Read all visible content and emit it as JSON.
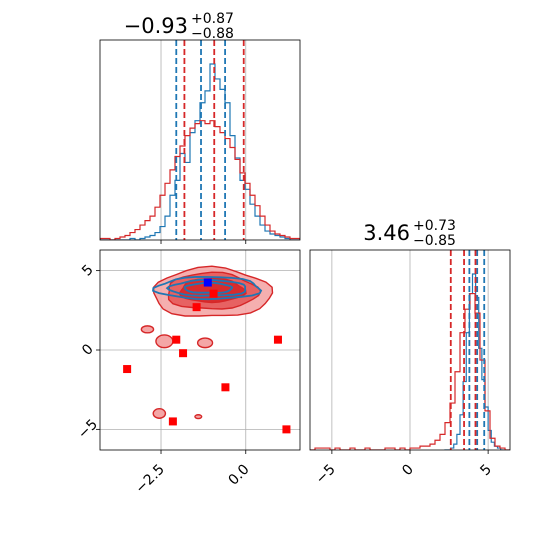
{
  "colors": {
    "blue": "#1f77b4",
    "red": "#d62728",
    "red_light": "#f4a6a6",
    "red_mid": "#e55a5a",
    "marker_red": "#ff0000",
    "marker_blue": "#0000ff",
    "grid": "#b0b0b0"
  },
  "chart_data": [
    {
      "type": "histogram",
      "panel": "top-left",
      "title_main": "−0.93",
      "title_sup": "+0.87",
      "title_sub": "−0.88",
      "xlim": [
        -4.3,
        1.6
      ],
      "xticks": [
        -2.5,
        0.0
      ],
      "grid": true,
      "series": [
        {
          "color": "blue",
          "bins": [
            -4.3,
            1.6
          ],
          "counts": [
            0,
            0,
            0,
            0,
            0,
            0,
            1,
            0,
            1,
            2,
            3,
            5,
            9,
            16,
            30,
            40,
            58,
            52,
            72,
            80,
            92,
            100,
            118,
            108,
            101,
            92,
            70,
            55,
            40,
            34,
            24,
            16,
            10,
            6,
            4,
            3,
            2,
            1,
            0,
            0
          ]
        },
        {
          "color": "red",
          "bins": [
            -4.3,
            1.6
          ],
          "counts": [
            1,
            1,
            0,
            1,
            2,
            3,
            5,
            7,
            10,
            13,
            16,
            22,
            30,
            38,
            47,
            56,
            63,
            70,
            75,
            78,
            80,
            78,
            80,
            76,
            72,
            68,
            62,
            54,
            45,
            38,
            30,
            23,
            16,
            10,
            6,
            4,
            3,
            2,
            1,
            1
          ]
        }
      ],
      "quantile_lines": [
        {
          "color": "blue",
          "values": [
            -2.05,
            -1.32,
            -0.61
          ]
        },
        {
          "color": "red",
          "values": [
            -1.81,
            -0.93,
            -0.06
          ]
        }
      ]
    },
    {
      "type": "histogram",
      "panel": "bottom-right",
      "title_main": "3.46",
      "title_sup": "+0.73",
      "title_sub": "−0.85",
      "xlim": [
        -6.4,
        6.4
      ],
      "xticks": [
        -5,
        0,
        5
      ],
      "grid": true,
      "series": [
        {
          "color": "blue",
          "bins": [
            2.2,
            6.0
          ],
          "counts": [
            0,
            0,
            1,
            3,
            8,
            18,
            35,
            60,
            80,
            90,
            78,
            52,
            36,
            22,
            10,
            4,
            2,
            1,
            0
          ]
        },
        {
          "color": "red",
          "bins": [
            -6.4,
            6.4
          ],
          "counts": [
            0,
            1,
            1,
            1,
            0,
            1,
            0,
            0,
            1,
            0,
            0,
            1,
            0,
            0,
            0,
            1,
            1,
            0,
            1,
            0,
            1,
            1,
            2,
            2,
            3,
            5,
            8,
            14,
            24,
            40,
            60,
            72,
            80,
            70,
            46,
            20,
            6,
            2,
            1,
            0
          ]
        }
      ],
      "quantile_lines": [
        {
          "color": "blue",
          "values": [
            3.8,
            4.3,
            4.75
          ]
        },
        {
          "color": "red",
          "values": [
            2.61,
            3.46,
            4.19
          ]
        }
      ]
    },
    {
      "type": "scatter",
      "panel": "bottom-left",
      "xlim": [
        -4.3,
        1.6
      ],
      "ylim": [
        -6.3,
        6.3
      ],
      "xticks": [
        -2.5,
        0.0
      ],
      "yticks": [
        -5,
        0,
        5
      ],
      "grid": true,
      "red_points": [
        [
          -3.5,
          -1.2
        ],
        [
          -2.05,
          0.65
        ],
        [
          -1.85,
          -0.2
        ],
        [
          -1.45,
          2.7
        ],
        [
          -0.95,
          3.55
        ],
        [
          -0.6,
          -2.35
        ],
        [
          -2.15,
          -4.5
        ],
        [
          0.95,
          0.65
        ],
        [
          1.2,
          -5.0
        ]
      ],
      "blue_points": [
        [
          -1.12,
          4.25
        ]
      ],
      "red_contours": [
        {
          "level": "outer",
          "cx": -1.0,
          "cy": 3.6,
          "rx": 1.75,
          "ry": 1.55
        },
        {
          "level": "mid",
          "cx": -1.0,
          "cy": 3.7,
          "rx": 1.35,
          "ry": 1.15
        },
        {
          "level": "inner",
          "cx": -1.0,
          "cy": 3.75,
          "rx": 0.95,
          "ry": 0.75
        }
      ],
      "red_islands": [
        [
          -2.4,
          0.55,
          0.25,
          0.4
        ],
        [
          -2.9,
          1.3,
          0.18,
          0.22
        ],
        [
          -1.2,
          0.45,
          0.22,
          0.3
        ],
        [
          -2.55,
          -4.0,
          0.18,
          0.3
        ],
        [
          -1.4,
          -4.2,
          0.1,
          0.12
        ]
      ],
      "blue_contours": [
        {
          "cx": -1.1,
          "cy": 3.9,
          "rx": 1.55,
          "ry": 0.7
        },
        {
          "cx": -1.1,
          "cy": 3.9,
          "rx": 1.15,
          "ry": 0.5
        },
        {
          "cx": -1.1,
          "cy": 3.9,
          "rx": 0.7,
          "ry": 0.32
        }
      ]
    }
  ]
}
